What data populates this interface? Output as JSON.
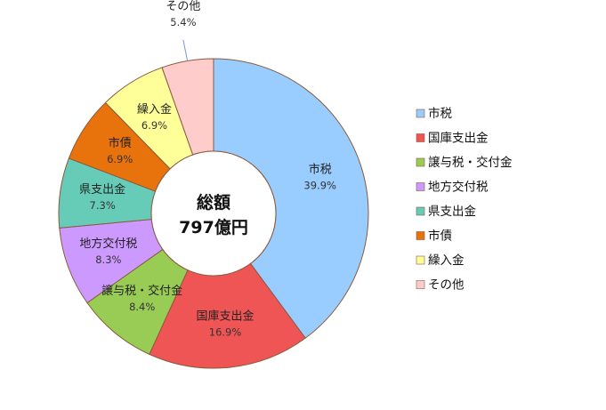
{
  "chart_data": {
    "type": "pie",
    "donut": true,
    "center_label": [
      "総額",
      "797億円"
    ],
    "categories": [
      "市税",
      "国庫支出金",
      "譲与税・交付金",
      "地方交付税",
      "県支出金",
      "市債",
      "繰入金",
      "その他"
    ],
    "values": [
      39.9,
      16.9,
      8.4,
      8.3,
      7.3,
      6.9,
      6.9,
      5.4
    ],
    "value_labels": [
      "39.9%",
      "16.9%",
      "8.4%",
      "8.3%",
      "7.3%",
      "6.9%",
      "6.9%",
      "5.4%"
    ],
    "colors": [
      "#99CCFF",
      "#F05555",
      "#99CC55",
      "#CC99FF",
      "#66CCB8",
      "#E8720C",
      "#FFFF99",
      "#FFCCCC"
    ],
    "legend_position": "right"
  }
}
